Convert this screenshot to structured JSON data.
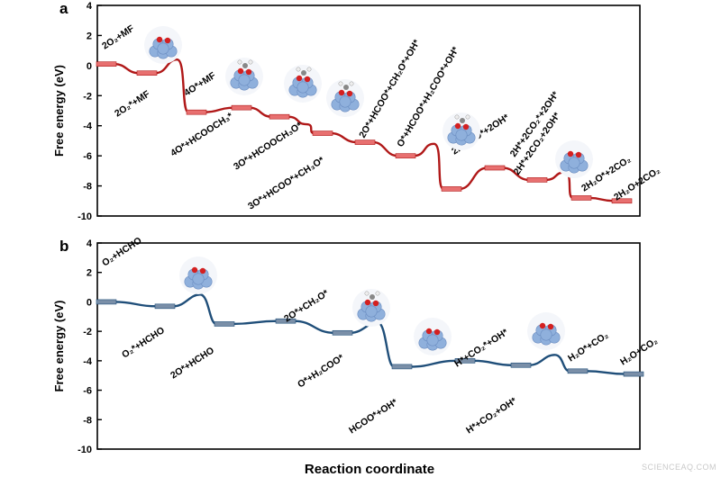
{
  "watermark": "SCIENCEAQ.COM",
  "x_axis_label": "Reaction coordinate",
  "colors": {
    "panel_a": "#b01818",
    "panel_b": "#1f4e79",
    "bar_a": "#e87070",
    "bar_b": "#7a8fa8",
    "cluster": "#8fb0dc",
    "oxygen": "#d42020"
  },
  "chart_data": [
    {
      "panel": "a",
      "type": "line",
      "ylabel": "Free energy (eV)",
      "ylim": [
        -10,
        4
      ],
      "yticks": [
        4,
        2,
        0,
        -2,
        -4,
        -6,
        -8,
        -10
      ],
      "color": "#b01818",
      "states": [
        {
          "label": "2O₂+MF",
          "energy": 0.1
        },
        {
          "label": "2O₂*+MF",
          "energy": -0.5
        },
        {
          "label": "4O*+MF",
          "energy": -3.1
        },
        {
          "label": "4O*+HCOOCH₃*",
          "energy": -2.8
        },
        {
          "label": "3O*+HCOOCH₃O*",
          "energy": -3.4
        },
        {
          "label": "3O*+HCOO*+CH₃O*",
          "energy": -4.5
        },
        {
          "label": "2O*+HCOO*+CH₂O*+OH*",
          "energy": -5.1
        },
        {
          "label": "O*+HCOO*+H₂COO*+OH*",
          "energy": -6.0
        },
        {
          "label": "2HCOO*+2OH*",
          "energy": -8.2
        },
        {
          "label": "2H*+2CO₂*+2OH*",
          "energy": -6.8
        },
        {
          "label": "2H*+2CO₂+2OH*",
          "energy": -7.6
        },
        {
          "label": "2H₂O*+2CO₂",
          "energy": -8.8
        },
        {
          "label": "2H₂O+2CO₂",
          "energy": -9.0
        }
      ],
      "barriers": [
        {
          "between": [
            1,
            2
          ],
          "energy": 0.4
        },
        {
          "between": [
            4,
            5
          ],
          "energy": -3.9
        },
        {
          "between": [
            7,
            8
          ],
          "energy": -5.2
        },
        {
          "between": [
            10,
            11
          ],
          "energy": -7.1
        }
      ]
    },
    {
      "panel": "b",
      "type": "line",
      "ylabel": "Free energy (eV)",
      "ylim": [
        -10,
        4
      ],
      "yticks": [
        4,
        2,
        0,
        -2,
        -4,
        -6,
        -8,
        -10
      ],
      "color": "#1f4e79",
      "states": [
        {
          "label": "O₂+HCHO",
          "energy": 0.0
        },
        {
          "label": "O₂*+HCHO",
          "energy": -0.3
        },
        {
          "label": "2O*+HCHO",
          "energy": -1.5
        },
        {
          "label": "2O*+CH₂O*",
          "energy": -1.3
        },
        {
          "label": "O*+H₂COO*",
          "energy": -2.1
        },
        {
          "label": "HCOO*+OH*",
          "energy": -4.4
        },
        {
          "label": "H*+CO₂*+OH*",
          "energy": -4.0
        },
        {
          "label": "H*+CO₂+OH*",
          "energy": -4.3
        },
        {
          "label": "H₂O*+CO₂",
          "energy": -4.7
        },
        {
          "label": "H₂O+CO₂",
          "energy": -4.9
        }
      ],
      "barriers": [
        {
          "between": [
            1,
            2
          ],
          "energy": 0.5
        },
        {
          "between": [
            4,
            5
          ],
          "energy": -1.4
        },
        {
          "between": [
            7,
            8
          ],
          "energy": -3.6
        }
      ]
    }
  ]
}
